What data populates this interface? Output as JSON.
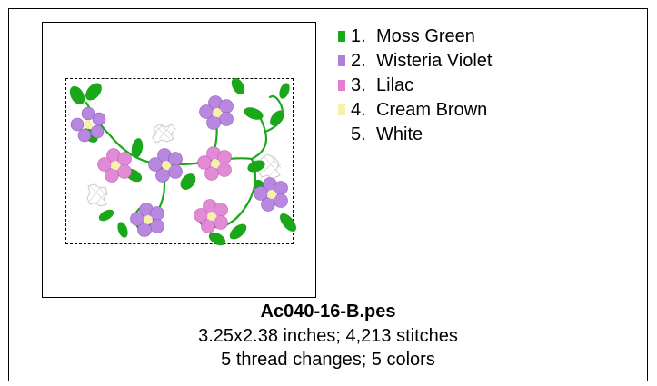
{
  "design": {
    "filename": "Ac040-16-B.pes",
    "size_stitches": "3.25x2.38 inches; 4,213 stitches",
    "changes_colors": "5 thread changes; 5 colors"
  },
  "legend": [
    {
      "number": "1.",
      "name": "Moss Green",
      "color": "#1aa81a"
    },
    {
      "number": "2.",
      "name": "Wisteria Violet",
      "color": "#b07fd8"
    },
    {
      "number": "3.",
      "name": "Lilac",
      "color": "#e37fd0"
    },
    {
      "number": "4.",
      "name": "Cream Brown",
      "color": "#f7f0a8"
    },
    {
      "number": "5.",
      "name": "White",
      "color": "#ffffff"
    }
  ],
  "palette": {
    "leaf": "#1aa81a",
    "violet_petal": "#b887e0",
    "lilac_petal": "#e38ad6",
    "center": "#f7f0a8",
    "white_fill": "#d0d0d0"
  }
}
